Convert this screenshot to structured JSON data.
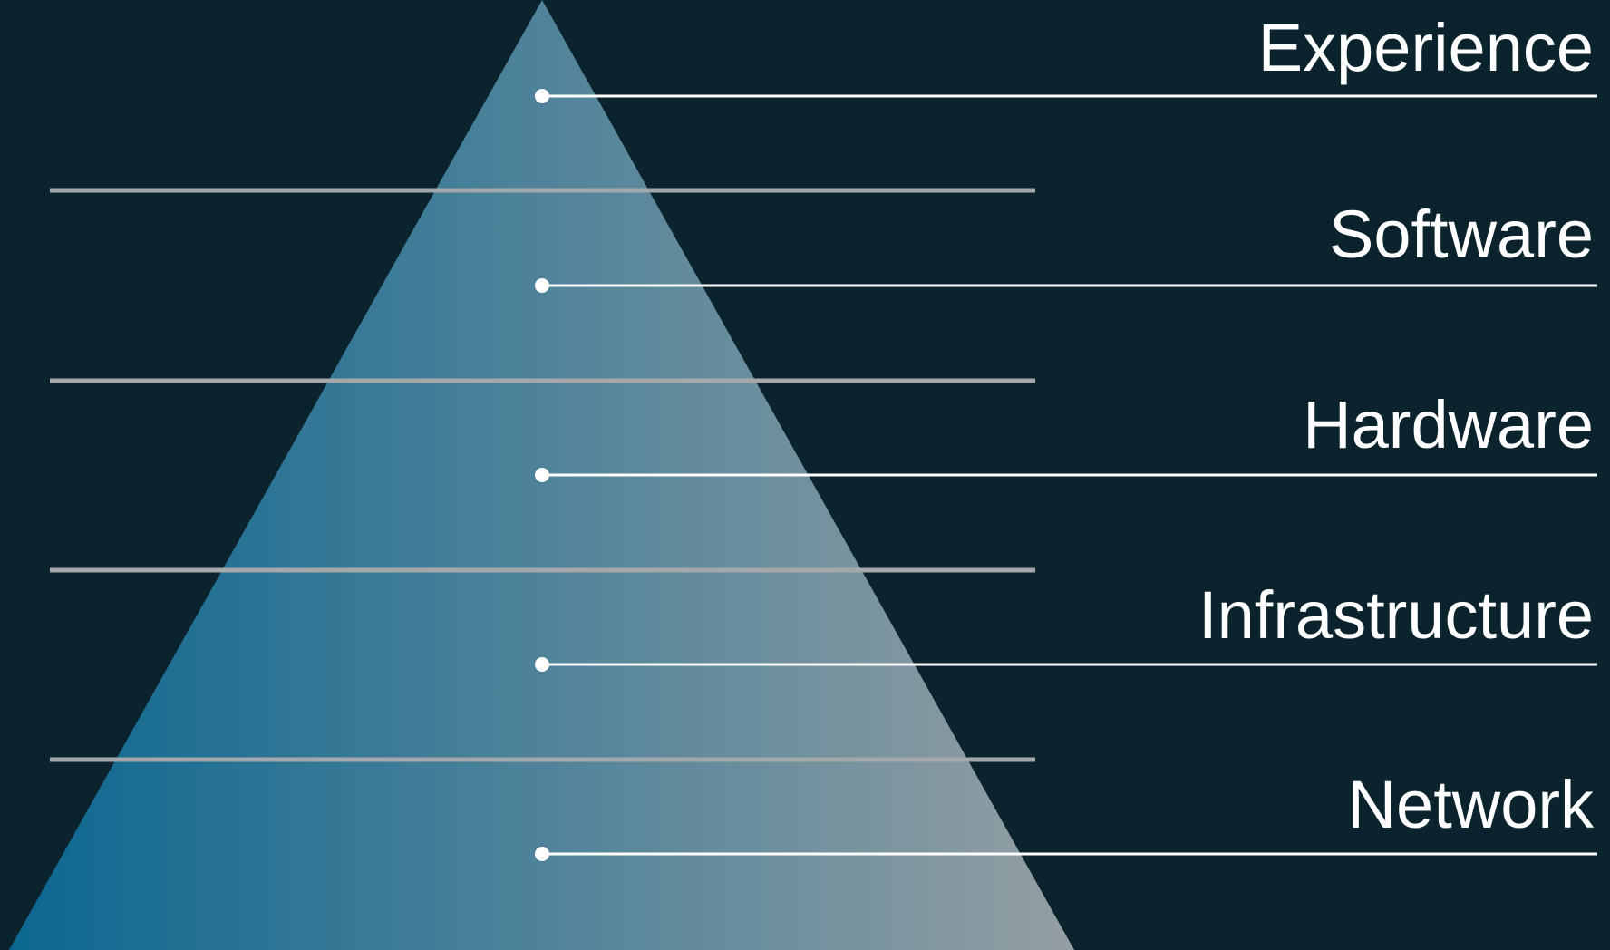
{
  "diagram": {
    "colors": {
      "background": "#0b232d",
      "pyramid_gradient_start": "#0b6791",
      "pyramid_gradient_end": "#949fa3",
      "separator": "#a4a8aa",
      "leader": "#ffffff",
      "label": "#ffffff"
    },
    "layers": [
      {
        "label": "Experience"
      },
      {
        "label": "Software"
      },
      {
        "label": "Hardware"
      },
      {
        "label": "Infrastructure"
      },
      {
        "label": "Network"
      }
    ]
  }
}
